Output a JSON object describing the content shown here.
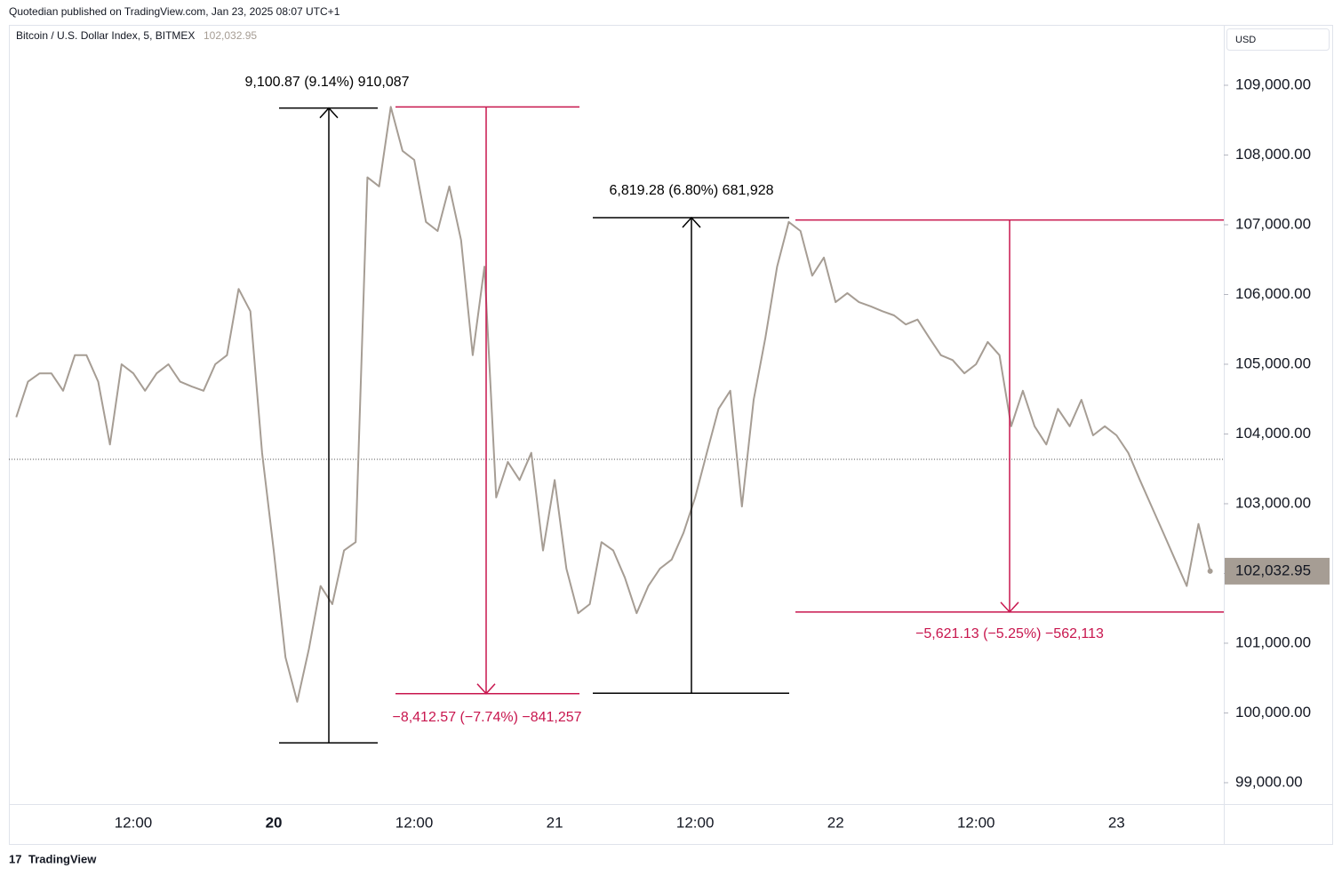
{
  "header": {
    "publisher": "Quotedian published on TradingView.com, Jan 23, 2025 08:07 UTC+1",
    "currency": "USD",
    "footer": "TradingView"
  },
  "chart_data": {
    "type": "line",
    "title": "Bitcoin / U.S. Dollar Index, 5, BITMEX",
    "categories": [
      null,
      null,
      null,
      null,
      null,
      null,
      null,
      null,
      null,
      null,
      "12:00",
      null,
      null,
      null,
      null,
      null,
      null,
      null,
      null,
      null,
      null,
      null,
      "20",
      null,
      null,
      null,
      null,
      null,
      null,
      null,
      null,
      null,
      null,
      null,
      "12:00",
      null,
      null,
      null,
      null,
      null,
      null,
      null,
      null,
      null,
      null,
      null,
      "21",
      null,
      null,
      null,
      null,
      null,
      null,
      null,
      null,
      null,
      null,
      null,
      "12:00",
      null,
      null,
      null,
      null,
      null,
      null,
      null,
      null,
      null,
      null,
      null,
      "22",
      null,
      null,
      null,
      null,
      null,
      null,
      null,
      null,
      null,
      null,
      null,
      "12:00",
      null,
      null,
      null,
      null,
      null,
      null,
      null,
      null,
      null,
      null,
      null,
      "23",
      null,
      null,
      null,
      null,
      null,
      null,
      null,
      null
    ],
    "series": [
      {
        "color": "#a69d94",
        "values": [
          104240,
          104750,
          104870,
          104870,
          104620,
          105130,
          105130,
          104750,
          103850,
          105000,
          104870,
          104620,
          104870,
          105000,
          104750,
          104680,
          104620,
          105000,
          105130,
          106080,
          105760,
          103730,
          102330,
          100800,
          100160,
          100920,
          101820,
          101560,
          102330,
          102450,
          107680,
          107550,
          108690,
          108060,
          107930,
          107040,
          106910,
          107550,
          106780,
          105130,
          106400,
          103090,
          103600,
          103340,
          103730,
          102330,
          103340,
          102070,
          101430,
          101560,
          102450,
          102330,
          101940,
          101430,
          101820,
          102070,
          102200,
          102580,
          103090,
          103730,
          104360,
          104620,
          102960,
          104490,
          105380,
          106400,
          107040,
          106910,
          106270,
          106530,
          105890,
          106020,
          105890,
          105830,
          105760,
          105700,
          105570,
          105640,
          105380,
          105130,
          105060,
          104870,
          105000,
          105320,
          105130,
          104110,
          104620,
          104110,
          103850,
          104360,
          104110,
          104490,
          103980,
          104110,
          103980,
          103730,
          103340,
          102960,
          102580,
          102200,
          101820,
          102710,
          102032.95
        ]
      }
    ],
    "last_price": {
      "value": 102032.95,
      "label": "102,032.95"
    },
    "reference_line": 103637,
    "ylim": [
      98694,
      109866
    ],
    "yticks": [
      {
        "value": 99000,
        "label": "99,000.00"
      },
      {
        "value": 100000,
        "label": "100,000.00"
      },
      {
        "value": 101000,
        "label": "101,000.00"
      },
      {
        "value": 102000,
        "label": "102,000.00"
      },
      {
        "value": 103000,
        "label": "103,000.00"
      },
      {
        "value": 104000,
        "label": "104,000.00"
      },
      {
        "value": 105000,
        "label": "105,000.00"
      },
      {
        "value": 106000,
        "label": "106,000.00"
      },
      {
        "value": 107000,
        "label": "107,000.00"
      },
      {
        "value": 108000,
        "label": "108,000.00"
      },
      {
        "value": 109000,
        "label": "109,000.00"
      }
    ],
    "measurements": [
      {
        "label": "9,100.87 (9.14%) 910,087",
        "from": 99572,
        "to": 108672.87,
        "color": "#000000"
      },
      {
        "label": "−8,412.57 (−7.74%) −841,257",
        "from": 108690,
        "to": 100277.43,
        "color": "#c8164e"
      },
      {
        "label": "6,819.28 (6.80%) 681,928",
        "from": 100283,
        "to": 107102.28,
        "color": "#000000"
      },
      {
        "label": "−5,621.13 (−5.25%) −562,113",
        "from": 107069,
        "to": 101447.87,
        "color": "#c8164e"
      }
    ]
  }
}
